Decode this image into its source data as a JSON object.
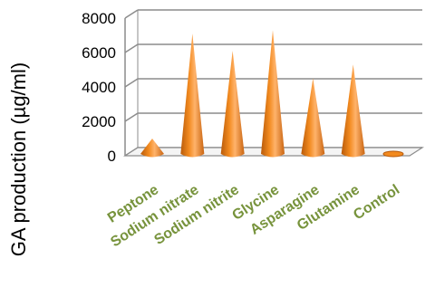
{
  "chart_data": {
    "type": "bar",
    "style": "3d-cone",
    "title": "",
    "xlabel": "",
    "ylabel": "GA production (µg/ml)",
    "categories": [
      "Peptone",
      "Sodium nitrate",
      "Sodium nitrite",
      "Glycine",
      "Asparagine",
      "Glutamine",
      "Control"
    ],
    "values": [
      1000,
      7100,
      6100,
      7300,
      4500,
      5300,
      150
    ],
    "ylim": [
      0,
      8000
    ],
    "yticks": [
      "0",
      "2000",
      "4000",
      "6000",
      "8000"
    ],
    "grid": true,
    "legend": "none",
    "colors": {
      "bar_light": "#ffb36b",
      "bar_mid": "#f28a1f",
      "bar_dark": "#b85a0a",
      "category_label": "#77933c",
      "gridline": "#8c8c8c"
    }
  }
}
